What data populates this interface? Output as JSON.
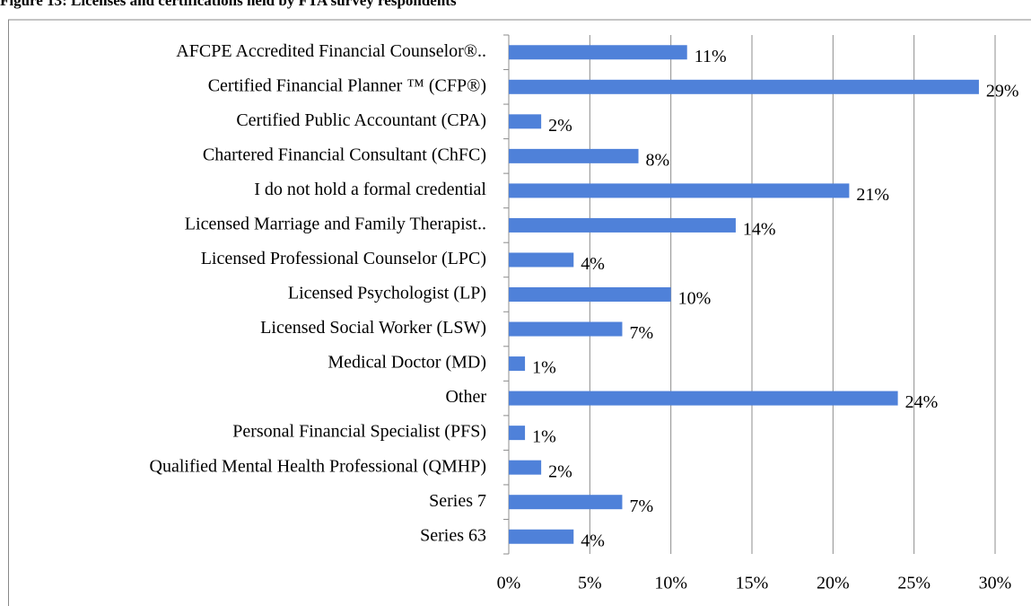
{
  "chart_data": {
    "type": "bar",
    "orientation": "horizontal",
    "title": "Figure 13: Licenses and certifications held by FTA survey respondents",
    "categories": [
      "AFCPE Accredited Financial Counselor®..",
      "Certified Financial Planner ™ (CFP®)",
      "Certified Public Accountant (CPA)",
      "Chartered Financial Consultant (ChFC)",
      "I do not hold a formal credential",
      "Licensed Marriage and Family Therapist..",
      "Licensed Professional Counselor (LPC)",
      "Licensed Psychologist (LP)",
      "Licensed Social Worker (LSW)",
      "Medical Doctor (MD)",
      "Other",
      "Personal Financial Specialist (PFS)",
      "Qualified Mental Health Professional (QMHP)",
      "Series 7",
      "Series 63"
    ],
    "values": [
      11,
      29,
      2,
      8,
      21,
      14,
      4,
      10,
      7,
      1,
      24,
      1,
      2,
      7,
      4
    ],
    "value_labels": [
      "11%",
      "29%",
      "2%",
      "8%",
      "21%",
      "14%",
      "4%",
      "10%",
      "7%",
      "1%",
      "24%",
      "1%",
      "2%",
      "7%",
      "4%"
    ],
    "color": "#4f81d9",
    "xlim": [
      0,
      30
    ],
    "xticks": [
      {
        "value": 0,
        "label": "0%"
      },
      {
        "value": 5,
        "label": "5%"
      },
      {
        "value": 10,
        "label": "10%"
      },
      {
        "value": 15,
        "label": "15%"
      },
      {
        "value": 20,
        "label": "20%"
      },
      {
        "value": 25,
        "label": "25%"
      },
      {
        "value": 30,
        "label": "30%"
      }
    ],
    "grid": true
  }
}
